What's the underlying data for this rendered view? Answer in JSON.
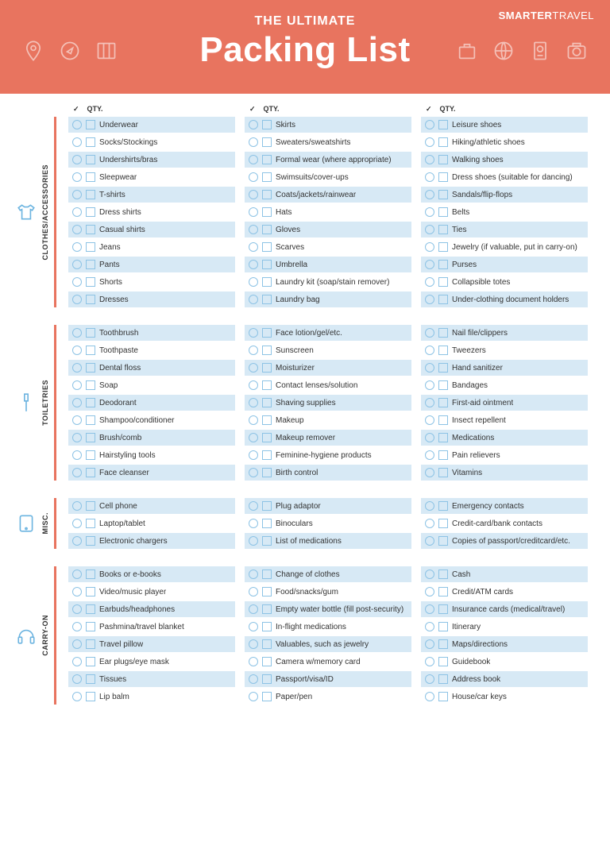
{
  "colors": {
    "header_bg": "#e8745f",
    "row_bg": "#d7e9f5",
    "row_alt_bg": "#ffffff",
    "accent": "#e8745f",
    "icon_stroke": "#6cb4e0",
    "control_border": "#8dc3e5"
  },
  "brand": {
    "bold": "SMARTER",
    "light": "TRAVEL"
  },
  "subtitle": "THE ULTIMATE",
  "title": "Packing List",
  "column_header": {
    "check": "✓",
    "qty": "QTY."
  },
  "sections": [
    {
      "label": "CLOTHES/ACCESSORIES",
      "icon": "shirt",
      "columns": [
        [
          "Underwear",
          "Socks/Stockings",
          "Undershirts/bras",
          "Sleepwear",
          "T-shirts",
          "Dress shirts",
          "Casual shirts",
          "Jeans",
          "Pants",
          "Shorts",
          "Dresses"
        ],
        [
          "Skirts",
          "Sweaters/sweatshirts",
          "Formal wear (where appropriate)",
          "Swimsuits/cover-ups",
          "Coats/jackets/rainwear",
          "Hats",
          "Gloves",
          "Scarves",
          "Umbrella",
          "Laundry kit (soap/stain remover)",
          "Laundry bag"
        ],
        [
          "Leisure shoes",
          "Hiking/athletic shoes",
          "Walking shoes",
          "Dress shoes (suitable for dancing)",
          "Sandals/flip-flops",
          "Belts",
          "Ties",
          "Jewelry (if valuable, put in carry-on)",
          "Purses",
          "Collapsible totes",
          "Under-clothing document holders"
        ]
      ]
    },
    {
      "label": "TOILETRIES",
      "icon": "toothbrush",
      "columns": [
        [
          "Toothbrush",
          "Toothpaste",
          "Dental floss",
          "Soap",
          "Deodorant",
          "Shampoo/conditioner",
          "Brush/comb",
          "Hairstyling tools",
          "Face cleanser"
        ],
        [
          "Face lotion/gel/etc.",
          "Sunscreen",
          "Moisturizer",
          "Contact lenses/solution",
          "Shaving supplies",
          "Makeup",
          "Makeup remover",
          "Feminine-hygiene products",
          "Birth control"
        ],
        [
          "Nail file/clippers",
          "Tweezers",
          "Hand sanitizer",
          "Bandages",
          "First-aid ointment",
          "Insect repellent",
          "Medications",
          "Pain relievers",
          "Vitamins"
        ]
      ]
    },
    {
      "label": "MISC.",
      "icon": "tablet",
      "columns": [
        [
          "Cell phone",
          "Laptop/tablet",
          "Electronic chargers"
        ],
        [
          "Plug adaptor",
          "Binoculars",
          "List of medications"
        ],
        [
          "Emergency contacts",
          "Credit-card/bank contacts",
          "Copies of passport/creditcard/etc."
        ]
      ]
    },
    {
      "label": "CARRY-ON",
      "icon": "headphones",
      "columns": [
        [
          "Books or e-books",
          "Video/music player",
          "Earbuds/headphones",
          "Pashmina/travel blanket",
          "Travel pillow",
          "Ear plugs/eye mask",
          "Tissues",
          "Lip balm"
        ],
        [
          "Change of clothes",
          "Food/snacks/gum",
          "Empty water bottle (fill post-security)",
          "In-flight medications",
          "Valuables, such as jewelry",
          "Camera w/memory card",
          "Passport/visa/ID",
          "Paper/pen"
        ],
        [
          "Cash",
          "Credit/ATM cards",
          "Insurance cards (medical/travel)",
          "Itinerary",
          "Maps/directions",
          "Guidebook",
          "Address book",
          "House/car keys"
        ]
      ]
    }
  ]
}
